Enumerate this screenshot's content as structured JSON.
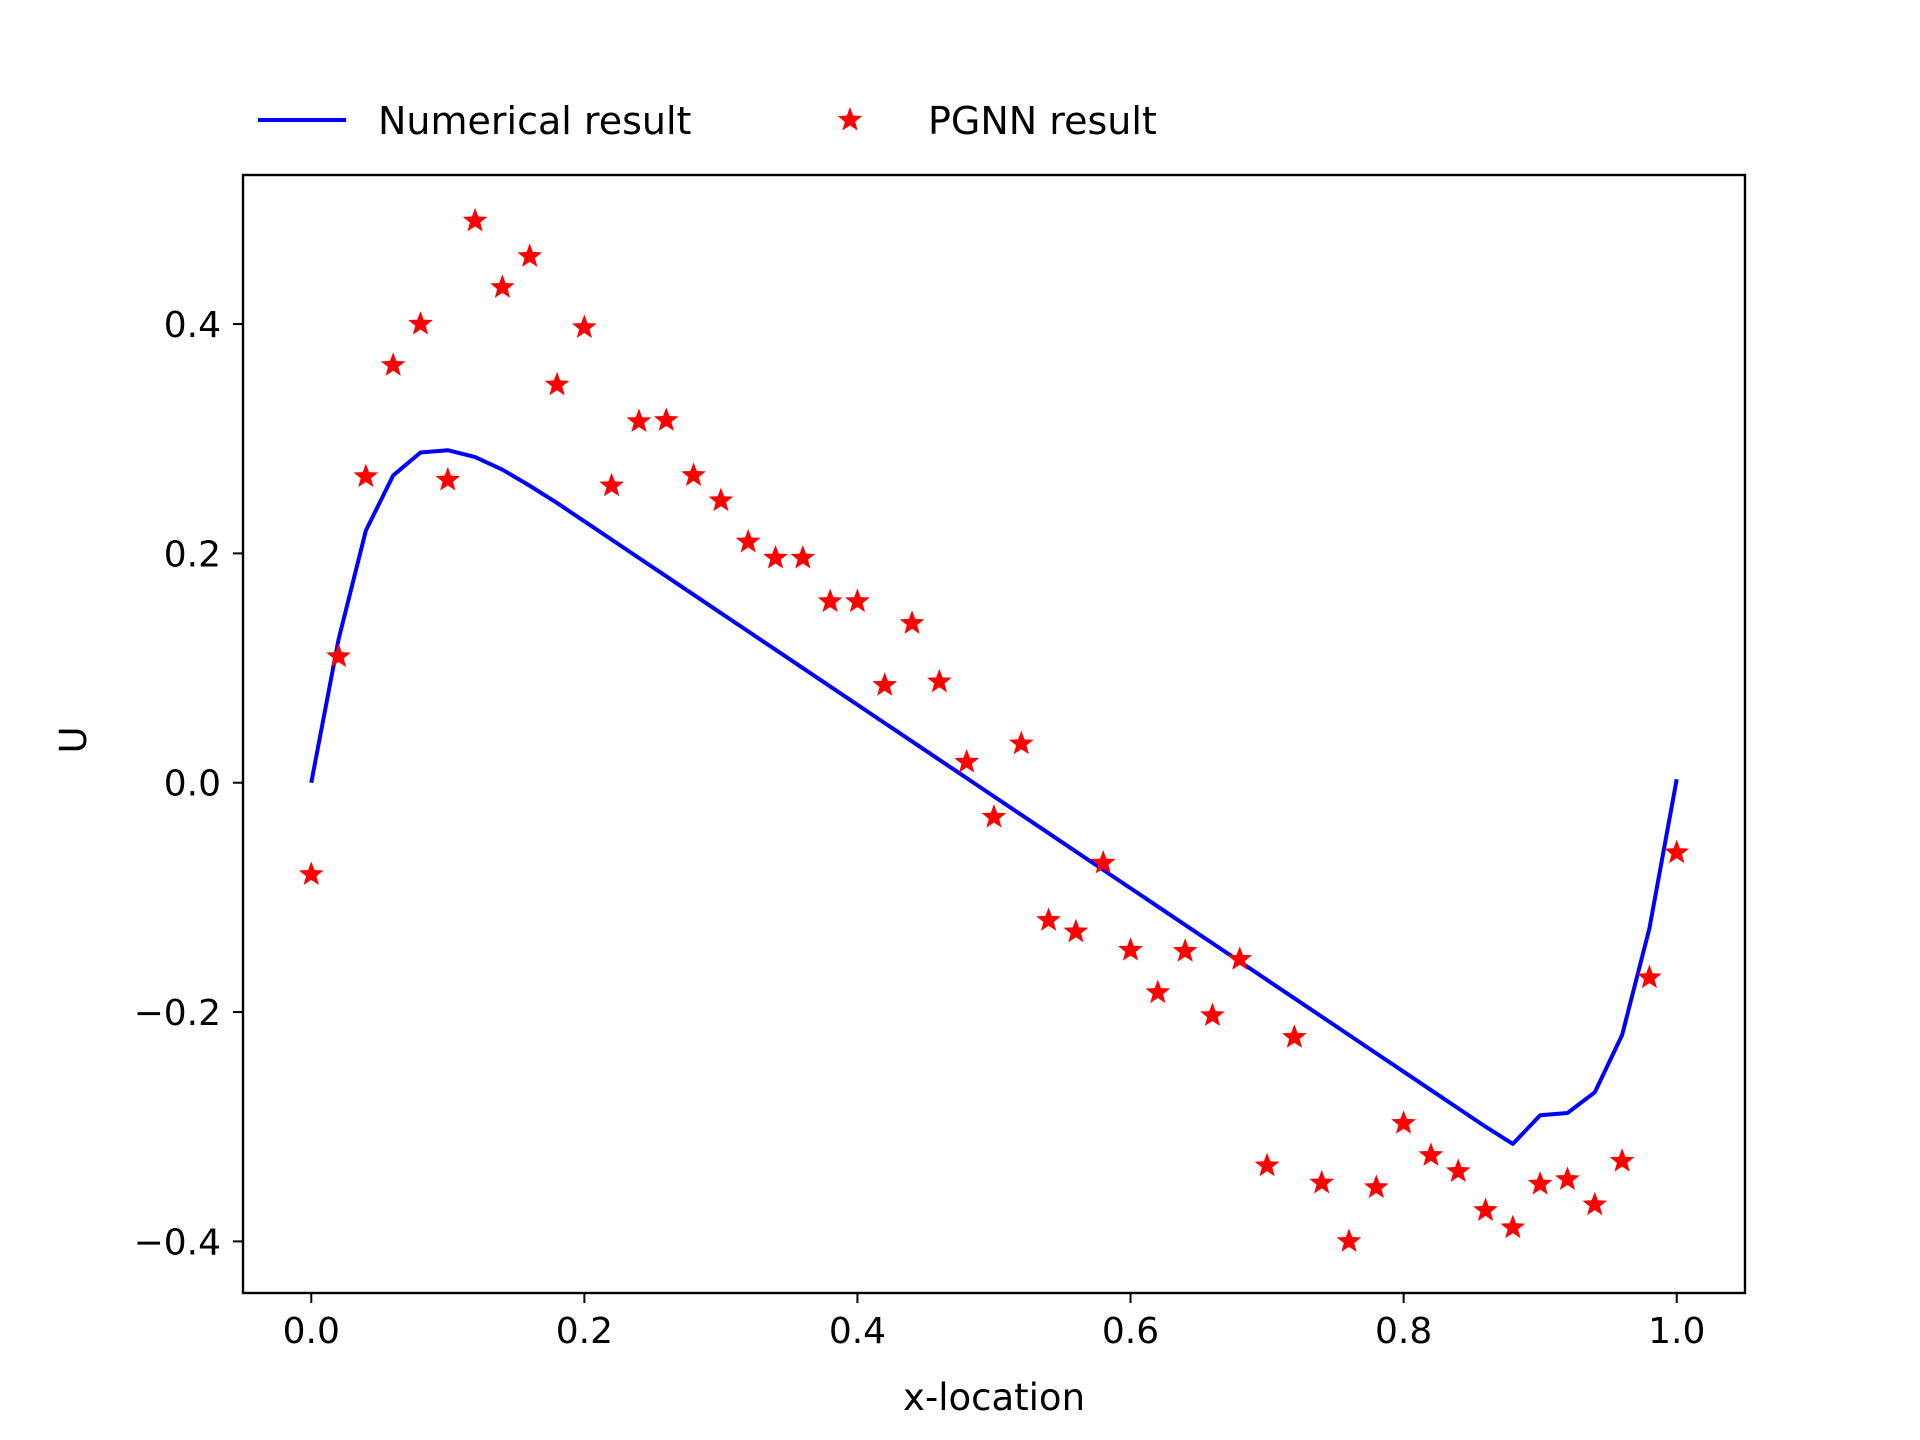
{
  "chart_data": {
    "type": "line",
    "title": "",
    "xlabel": "x-location",
    "ylabel": "U",
    "xlim": [
      -0.05,
      1.05
    ],
    "ylim": [
      -0.445,
      0.53
    ],
    "xticks": [
      0.0,
      0.2,
      0.4,
      0.6,
      0.8,
      1.0
    ],
    "xtick_labels": [
      "0.0",
      "0.2",
      "0.4",
      "0.6",
      "0.8",
      "1.0"
    ],
    "yticks": [
      0.4,
      0.2,
      0.0,
      -0.2,
      -0.4
    ],
    "ytick_labels": [
      "0.4",
      "0.2",
      "0.0",
      "−0.2",
      "−0.4"
    ],
    "grid": false,
    "legend_placement": "above plot, left",
    "series": [
      {
        "name": "Numerical result",
        "kind": "line",
        "color": "#0000ff",
        "x": [
          0.0,
          0.02,
          0.04,
          0.06,
          0.08,
          0.1,
          0.12,
          0.14,
          0.16,
          0.18,
          0.2,
          0.22,
          0.24,
          0.26,
          0.28,
          0.3,
          0.32,
          0.34,
          0.36,
          0.38,
          0.4,
          0.42,
          0.44,
          0.46,
          0.48,
          0.5,
          0.52,
          0.54,
          0.56,
          0.58,
          0.6,
          0.62,
          0.64,
          0.66,
          0.68,
          0.7,
          0.72,
          0.74,
          0.76,
          0.78,
          0.8,
          0.82,
          0.84,
          0.86,
          0.88,
          0.9,
          0.92,
          0.94,
          0.96,
          0.98,
          1.0
        ],
        "y": [
          0.0,
          0.125,
          0.22,
          0.268,
          0.288,
          0.29,
          0.284,
          0.273,
          0.259,
          0.244,
          0.228,
          0.212,
          0.196,
          0.18,
          0.164,
          0.148,
          0.132,
          0.116,
          0.1,
          0.084,
          0.068,
          0.052,
          0.036,
          0.02,
          0.004,
          -0.012,
          -0.028,
          -0.044,
          -0.06,
          -0.076,
          -0.092,
          -0.108,
          -0.124,
          -0.14,
          -0.156,
          -0.172,
          -0.188,
          -0.204,
          -0.22,
          -0.236,
          -0.252,
          -0.268,
          -0.284,
          -0.3,
          -0.315,
          -0.29,
          -0.288,
          -0.27,
          -0.22,
          -0.127,
          0.003
        ]
      },
      {
        "name": "PGNN result",
        "kind": "scatter",
        "marker": "star",
        "color": "#ff0000",
        "x": [
          0.0,
          0.02,
          0.04,
          0.06,
          0.08,
          0.1,
          0.12,
          0.14,
          0.16,
          0.18,
          0.2,
          0.22,
          0.24,
          0.26,
          0.28,
          0.3,
          0.32,
          0.34,
          0.36,
          0.38,
          0.4,
          0.42,
          0.44,
          0.46,
          0.48,
          0.5,
          0.52,
          0.54,
          0.56,
          0.58,
          0.6,
          0.62,
          0.64,
          0.66,
          0.68,
          0.7,
          0.72,
          0.74,
          0.76,
          0.78,
          0.8,
          0.82,
          0.84,
          0.86,
          0.88,
          0.9,
          0.92,
          0.94,
          0.96,
          0.98,
          1.0
        ],
        "y": [
          -0.08,
          0.11,
          0.267,
          0.364,
          0.4,
          0.264,
          0.49,
          0.432,
          0.459,
          0.347,
          0.397,
          0.259,
          0.315,
          0.316,
          0.268,
          0.246,
          0.21,
          0.196,
          0.196,
          0.158,
          0.158,
          0.085,
          0.139,
          0.088,
          0.018,
          -0.03,
          0.034,
          -0.12,
          -0.13,
          -0.07,
          -0.146,
          -0.183,
          -0.147,
          -0.203,
          -0.154,
          -0.334,
          -0.222,
          -0.349,
          -0.4,
          -0.353,
          -0.297,
          -0.325,
          -0.339,
          -0.373,
          -0.388,
          -0.35,
          -0.346,
          -0.368,
          -0.33,
          -0.17,
          -0.061
        ]
      }
    ]
  }
}
